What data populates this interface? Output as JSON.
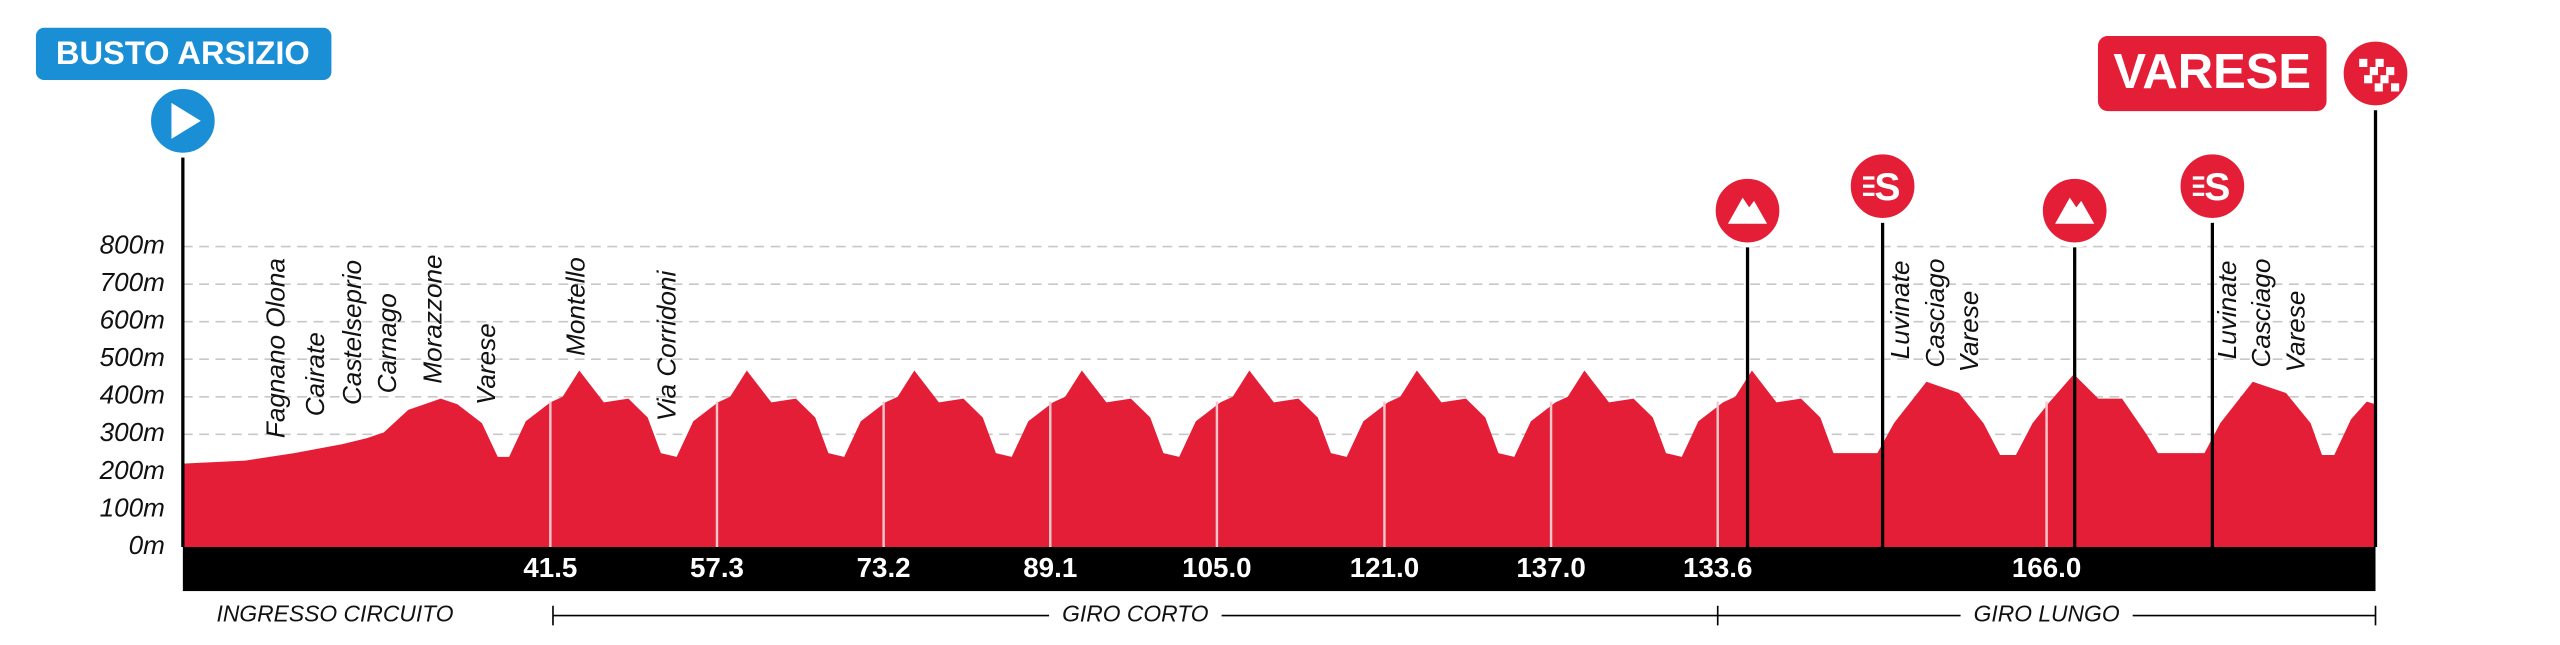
{
  "chart_data": {
    "type": "area",
    "start_label": "BUSTO ARSIZIO",
    "finish_label": "VARESE",
    "sprint_symbol": "S",
    "color": "#e31e36",
    "xlim": [
      0,
      250
    ],
    "ylim": [
      0,
      800
    ],
    "yticks": [
      {
        "value": 0,
        "label": "0m"
      },
      {
        "value": 100,
        "label": "100m"
      },
      {
        "value": 200,
        "label": "200m"
      },
      {
        "value": 300,
        "label": "300m"
      },
      {
        "value": 400,
        "label": "400m"
      },
      {
        "value": 500,
        "label": "500m"
      },
      {
        "value": 600,
        "label": "600m"
      },
      {
        "value": 700,
        "label": "700m"
      },
      {
        "value": 800,
        "label": "800m"
      }
    ],
    "grid": true,
    "x": [
      0,
      7.1,
      12.7,
      18.2,
      21.0,
      22.9,
      25.7,
      29.4,
      31.3,
      34.1,
      35.9,
      37.2,
      39.1,
      41.9,
      43.3,
      45.2,
      48.0,
      50.8,
      53.0,
      54.5,
      56.3,
      58.2,
      61.0,
      62.4,
      64.3,
      67.1,
      69.9,
      72.1,
      73.6,
      75.4,
      77.3,
      80.1,
      81.5,
      83.4,
      86.2,
      89.0,
      91.2,
      92.7,
      94.5,
      96.4,
      99.2,
      100.6,
      102.5,
      105.3,
      108.1,
      110.3,
      111.8,
      113.6,
      115.5,
      118.3,
      119.7,
      121.6,
      124.4,
      127.2,
      129.4,
      130.9,
      132.7,
      134.6,
      137.4,
      138.8,
      140.7,
      143.5,
      146.3,
      148.5,
      150.0,
      151.8,
      153.7,
      156.5,
      157.9,
      159.8,
      162.6,
      165.4,
      167.6,
      169.1,
      170.9,
      172.8,
      175.6,
      177.0,
      178.9,
      181.7,
      184.5,
      186.7,
      188.2,
      193.2,
      195.1,
      198.8,
      202.5,
      205.3,
      207.2,
      209.0,
      210.9,
      212.8,
      215.6,
      218.4,
      221.1,
      223.9,
      225.2,
      230.5,
      232.3,
      236.0,
      239.8,
      242.6,
      243.9,
      245.3,
      247.2,
      249.0,
      250.0
    ],
    "values": [
      222,
      230,
      250,
      274,
      290,
      305,
      365,
      395,
      380,
      330,
      240,
      240,
      335,
      385,
      400,
      470,
      385,
      395,
      345,
      250,
      240,
      335,
      385,
      400,
      470,
      385,
      395,
      345,
      250,
      240,
      335,
      385,
      400,
      470,
      385,
      395,
      345,
      250,
      240,
      335,
      385,
      400,
      470,
      385,
      395,
      345,
      250,
      240,
      335,
      385,
      400,
      470,
      385,
      395,
      345,
      250,
      240,
      335,
      385,
      400,
      470,
      385,
      395,
      345,
      250,
      240,
      335,
      385,
      400,
      470,
      385,
      395,
      345,
      250,
      240,
      335,
      385,
      400,
      470,
      385,
      395,
      345,
      250,
      250,
      330,
      440,
      410,
      330,
      245,
      245,
      330,
      385,
      460,
      395,
      395,
      300,
      250,
      250,
      330,
      440,
      410,
      330,
      245,
      245,
      340,
      387,
      380
    ],
    "laps": [
      {
        "km": 41.9,
        "label": "41.5"
      },
      {
        "km": 60.9,
        "label": "57.3"
      },
      {
        "km": 79.9,
        "label": "73.2"
      },
      {
        "km": 98.9,
        "label": "89.1"
      },
      {
        "km": 117.9,
        "label": "105.0"
      },
      {
        "km": 137.0,
        "label": "121.0"
      },
      {
        "km": 156.0,
        "label": "137.0"
      },
      {
        "km": 175.0,
        "label": "133.6"
      },
      {
        "km": 212.5,
        "label": "166.0"
      }
    ],
    "kom_km": [
      178.4,
      215.7
    ],
    "sprint_km": [
      193.8,
      231.4
    ],
    "places": [
      {
        "name": "Fagnano Olona",
        "km": 10.8,
        "elev": 290
      },
      {
        "name": "Cairate",
        "km": 15.3,
        "elev": 348
      },
      {
        "name": "Castelseprio",
        "km": 19.5,
        "elev": 378
      },
      {
        "name": "Carnago",
        "km": 23.5,
        "elev": 409
      },
      {
        "name": "Morazzone",
        "km": 28.7,
        "elev": 435
      },
      {
        "name": "Varese",
        "km": 34.8,
        "elev": 378
      },
      {
        "name": "Montello",
        "km": 45.0,
        "elev": 509
      },
      {
        "name": "Via Corridoni",
        "km": 55.4,
        "elev": 335
      },
      {
        "name": "Luvinate",
        "km": 196.0,
        "elev": 500
      },
      {
        "name": "Casciago",
        "km": 200.0,
        "elev": 478
      },
      {
        "name": "Varese",
        "km": 203.9,
        "elev": 465
      },
      {
        "name": "Luvinate",
        "km": 233.3,
        "elev": 500
      },
      {
        "name": "Casciago",
        "km": 237.2,
        "elev": 478
      },
      {
        "name": "Varese",
        "km": 241.1,
        "elev": 465
      }
    ],
    "sections": [
      {
        "label": "INGRESSO CIRCUITO",
        "from": -7.5,
        "to": 42.2
      },
      {
        "label": "GIRO CORTO",
        "from": 42.2,
        "to": 175.0
      },
      {
        "label": "GIRO LUNGO",
        "from": 175.0,
        "to": 250.0
      }
    ]
  }
}
